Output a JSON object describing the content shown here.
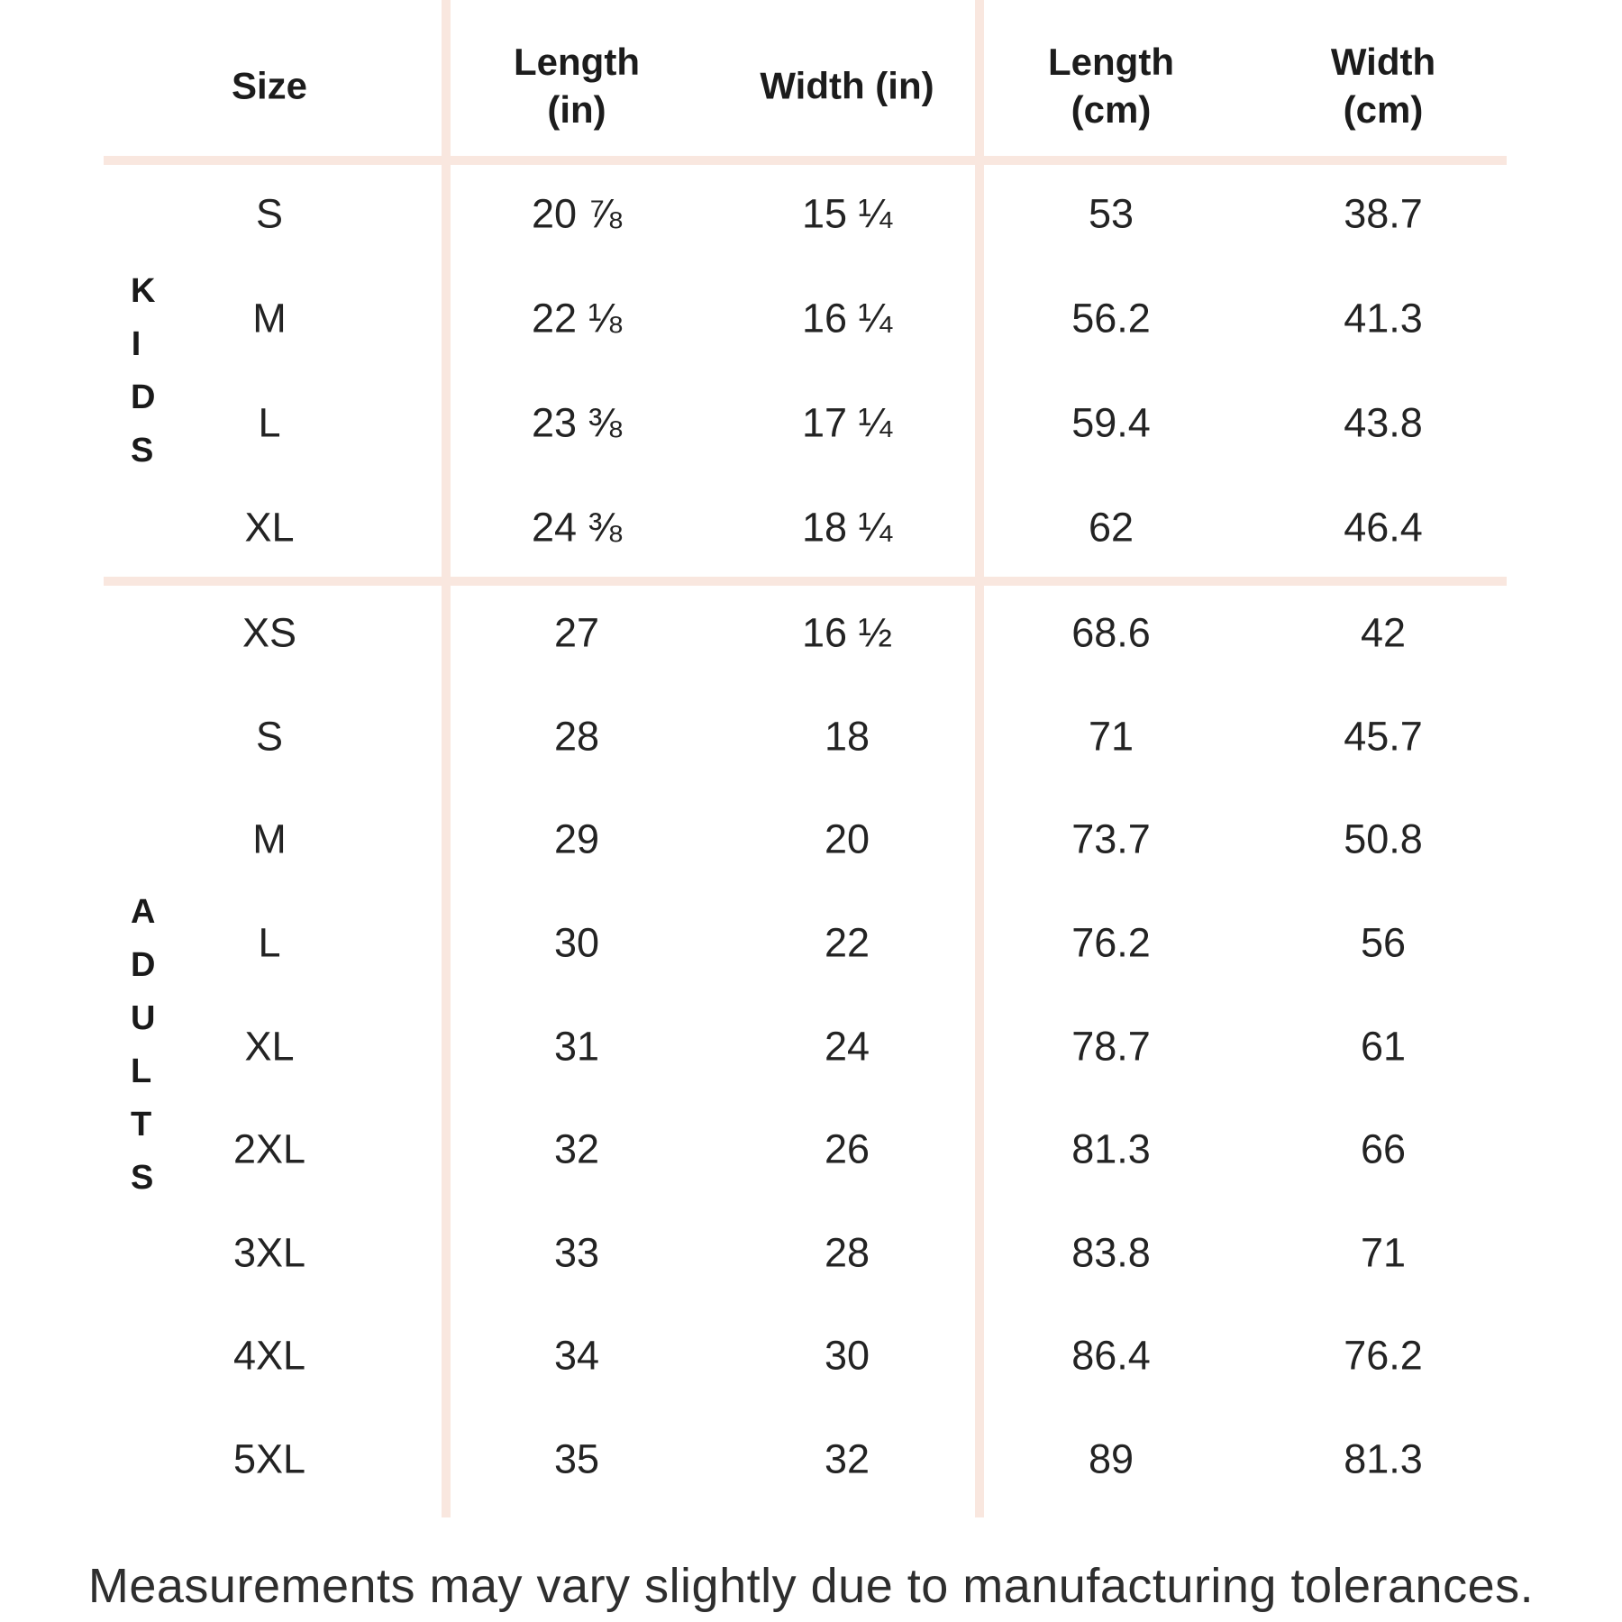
{
  "colors": {
    "line": "#f9e7df",
    "header_text": "#1c1c1c",
    "data_text": "#232323",
    "note_text": "#2e2e2e"
  },
  "table": {
    "headers": {
      "size": "Size",
      "length_in": "Length\n(in)",
      "width_in": "Width (in)",
      "length_cm": "Length\n(cm)",
      "width_cm": "Width\n(cm)"
    },
    "groups": [
      {
        "label": "KIDS",
        "rows": [
          {
            "size": "S",
            "length_in": "20 ⅞",
            "width_in": "15 ¼",
            "length_cm": "53",
            "width_cm": "38.7"
          },
          {
            "size": "M",
            "length_in": "22 ⅛",
            "width_in": "16 ¼",
            "length_cm": "56.2",
            "width_cm": "41.3"
          },
          {
            "size": "L",
            "length_in": "23 ⅜",
            "width_in": "17 ¼",
            "length_cm": "59.4",
            "width_cm": "43.8"
          },
          {
            "size": "XL",
            "length_in": "24 ⅜",
            "width_in": "18 ¼",
            "length_cm": "62",
            "width_cm": "46.4"
          }
        ]
      },
      {
        "label": "ADULTS",
        "rows": [
          {
            "size": "XS",
            "length_in": "27",
            "width_in": "16 ½",
            "length_cm": "68.6",
            "width_cm": "42"
          },
          {
            "size": "S",
            "length_in": "28",
            "width_in": "18",
            "length_cm": "71",
            "width_cm": "45.7"
          },
          {
            "size": "M",
            "length_in": "29",
            "width_in": "20",
            "length_cm": "73.7",
            "width_cm": "50.8"
          },
          {
            "size": "L",
            "length_in": "30",
            "width_in": "22",
            "length_cm": "76.2",
            "width_cm": "56"
          },
          {
            "size": "XL",
            "length_in": "31",
            "width_in": "24",
            "length_cm": "78.7",
            "width_cm": "61"
          },
          {
            "size": "2XL",
            "length_in": "32",
            "width_in": "26",
            "length_cm": "81.3",
            "width_cm": "66"
          },
          {
            "size": "3XL",
            "length_in": "33",
            "width_in": "28",
            "length_cm": "83.8",
            "width_cm": "71"
          },
          {
            "size": "4XL",
            "length_in": "34",
            "width_in": "30",
            "length_cm": "86.4",
            "width_cm": "76.2"
          },
          {
            "size": "5XL",
            "length_in": "35",
            "width_in": "32",
            "length_cm": "89",
            "width_cm": "81.3"
          }
        ]
      }
    ]
  },
  "footnote": "Measurements may vary slightly due to manufacturing tolerances."
}
